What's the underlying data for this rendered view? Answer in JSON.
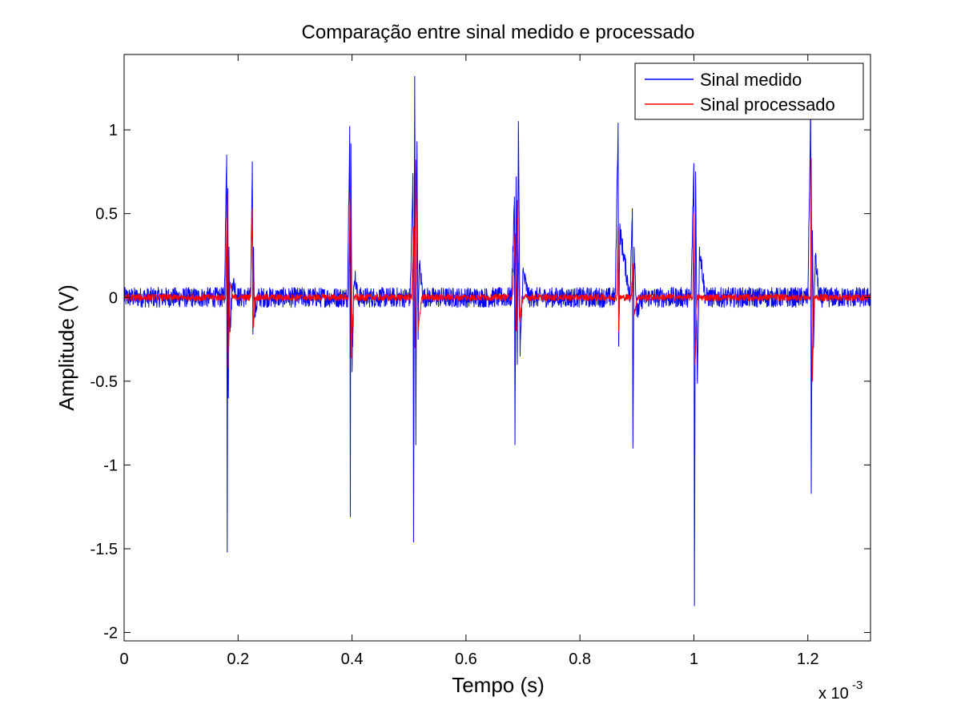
{
  "chart_data": {
    "type": "line",
    "title": "Comparação entre sinal medido e processado",
    "xlabel": "Tempo (s)",
    "ylabel": "Amplitude (V)",
    "x_multiplier_label": "x 10",
    "x_multiplier_exp": "-3",
    "xlim": [
      0,
      1.31
    ],
    "ylim": [
      -2.05,
      1.45
    ],
    "x_ticks": [
      0,
      0.2,
      0.4,
      0.6,
      0.8,
      1,
      1.2
    ],
    "x_tick_labels": [
      "0",
      "0.2",
      "0.4",
      "0.6",
      "0.8",
      "1",
      "1.2"
    ],
    "y_ticks": [
      1,
      0.5,
      0,
      -0.5,
      -1,
      -1.5,
      -2
    ],
    "y_tick_labels": [
      "1",
      "0.5",
      "0",
      "-0.5",
      "-1",
      "-1.5",
      "-2"
    ],
    "grid": false,
    "legend_position": "top-right",
    "series": [
      {
        "name": "Sinal medido",
        "color": "#0000ff",
        "noise_amplitude": 0.06,
        "x": [
          0.0,
          0.176,
          0.18,
          0.181,
          0.182,
          0.183,
          0.184,
          0.186,
          0.19,
          0.2,
          0.222,
          0.225,
          0.226,
          0.227,
          0.229,
          0.235,
          0.392,
          0.396,
          0.397,
          0.398,
          0.4,
          0.404,
          0.41,
          0.502,
          0.507,
          0.508,
          0.51,
          0.512,
          0.514,
          0.516,
          0.518,
          0.525,
          0.68,
          0.685,
          0.686,
          0.688,
          0.69,
          0.692,
          0.695,
          0.7,
          0.71,
          0.862,
          0.867,
          0.868,
          0.87,
          0.888,
          0.892,
          0.893,
          0.895,
          0.9,
          0.91,
          0.995,
          1.0,
          1.001,
          1.003,
          1.006,
          1.01,
          1.02,
          1.2,
          1.205,
          1.206,
          1.208,
          1.21,
          1.213,
          1.22,
          1.31
        ],
        "y": [
          0.0,
          0.0,
          0.85,
          -1.52,
          0.65,
          -0.6,
          0.3,
          -0.2,
          0.1,
          0.0,
          0.0,
          0.81,
          -0.22,
          0.3,
          -0.1,
          0.0,
          0.0,
          1.02,
          -1.31,
          0.9,
          -0.4,
          0.15,
          0.0,
          0.0,
          0.72,
          -1.46,
          1.32,
          -0.88,
          0.93,
          -0.25,
          0.2,
          0.0,
          0.0,
          0.6,
          -0.88,
          0.72,
          -0.4,
          1.05,
          -0.35,
          0.15,
          0.0,
          0.0,
          1.04,
          -0.28,
          0.4,
          0.0,
          0.53,
          -0.9,
          0.3,
          -0.1,
          0.0,
          0.0,
          0.8,
          -1.84,
          0.75,
          -0.5,
          0.3,
          0.0,
          0.0,
          1.1,
          -1.17,
          0.4,
          -0.3,
          0.25,
          0.0,
          0.0
        ]
      },
      {
        "name": "Sinal processado",
        "color": "#ff0000",
        "noise_amplitude": 0.02,
        "x": [
          0.0,
          0.178,
          0.181,
          0.183,
          0.186,
          0.19,
          0.222,
          0.225,
          0.227,
          0.23,
          0.394,
          0.397,
          0.399,
          0.403,
          0.505,
          0.508,
          0.51,
          0.512,
          0.516,
          0.522,
          0.682,
          0.686,
          0.688,
          0.69,
          0.694,
          0.7,
          0.865,
          0.867,
          0.868,
          0.87,
          0.89,
          0.893,
          0.895,
          0.9,
          0.998,
          1.0,
          1.002,
          1.006,
          1.205,
          1.206,
          1.208,
          1.211,
          1.31
        ],
        "y": [
          0.0,
          0.0,
          0.62,
          -0.42,
          0.1,
          0.0,
          0.0,
          0.53,
          -0.18,
          0.0,
          0.0,
          0.65,
          -0.35,
          0.0,
          0.0,
          0.42,
          -0.3,
          0.82,
          -0.2,
          0.0,
          0.0,
          0.38,
          -0.2,
          0.58,
          -0.15,
          0.0,
          0.0,
          0.43,
          -0.2,
          0.0,
          0.0,
          0.2,
          -0.12,
          0.0,
          0.0,
          0.5,
          -0.4,
          0.0,
          0.0,
          0.83,
          -0.5,
          0.0,
          0.0
        ]
      }
    ]
  }
}
